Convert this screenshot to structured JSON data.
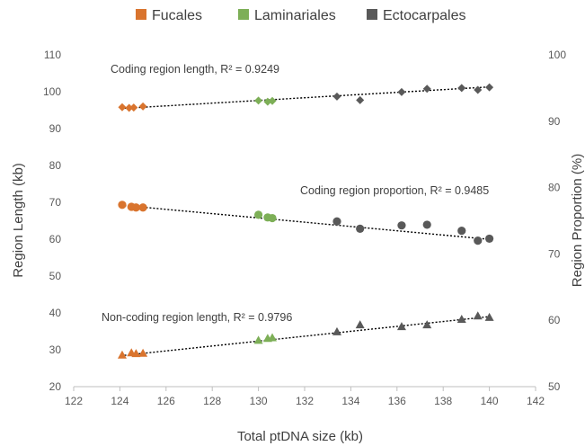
{
  "chart_data": {
    "type": "scatter",
    "xlabel": "Total ptDNA size (kb)",
    "ylabel": "Region Length (kb)",
    "y2label": "Region Proportion (%)",
    "xlim": [
      122,
      142
    ],
    "ylim": [
      20,
      110
    ],
    "y2lim": [
      50,
      100
    ],
    "xticks": [
      "122",
      "124",
      "126",
      "128",
      "130",
      "132",
      "134",
      "136",
      "138",
      "140",
      "142"
    ],
    "yticks": [
      "20",
      "30",
      "40",
      "50",
      "60",
      "70",
      "80",
      "90",
      "100",
      "110"
    ],
    "y2ticks": [
      "50",
      "60",
      "70",
      "80",
      "90",
      "100"
    ],
    "legend_position": "top",
    "legend": [
      {
        "label": "Fucales",
        "color": "#D9742E"
      },
      {
        "label": "Laminariales",
        "color": "#7DAF57"
      },
      {
        "label": "Ectocarpales",
        "color": "#595959"
      }
    ],
    "series": [
      {
        "key": "coding_length",
        "axis": "left",
        "marker": "diamond",
        "annotation": "Coding region length, R² = 0.9249",
        "trend_x": [
          124.2,
          140
        ],
        "trend_y": [
          95.5,
          101.3
        ],
        "points": [
          {
            "x": 124.1,
            "y": 95.8,
            "group": "Fucales"
          },
          {
            "x": 124.4,
            "y": 95.6,
            "group": "Fucales"
          },
          {
            "x": 124.6,
            "y": 95.7,
            "group": "Fucales"
          },
          {
            "x": 125.0,
            "y": 96.0,
            "group": "Fucales"
          },
          {
            "x": 130.0,
            "y": 97.6,
            "group": "Laminariales"
          },
          {
            "x": 130.4,
            "y": 97.3,
            "group": "Laminariales"
          },
          {
            "x": 130.6,
            "y": 97.5,
            "group": "Laminariales"
          },
          {
            "x": 133.4,
            "y": 98.7,
            "group": "Ectocarpales"
          },
          {
            "x": 134.4,
            "y": 97.7,
            "group": "Ectocarpales"
          },
          {
            "x": 136.2,
            "y": 99.9,
            "group": "Ectocarpales"
          },
          {
            "x": 137.3,
            "y": 100.8,
            "group": "Ectocarpales"
          },
          {
            "x": 138.8,
            "y": 101.0,
            "group": "Ectocarpales"
          },
          {
            "x": 139.5,
            "y": 100.5,
            "group": "Ectocarpales"
          },
          {
            "x": 140.0,
            "y": 101.2,
            "group": "Ectocarpales"
          }
        ]
      },
      {
        "key": "coding_proportion",
        "axis": "right",
        "marker": "circle",
        "annotation": "Coding region proportion, R² = 0.9485",
        "trend_x": [
          124.2,
          140
        ],
        "trend_y": [
          77.3,
          72.2
        ],
        "points": [
          {
            "x": 124.1,
            "y": 77.4,
            "group": "Fucales"
          },
          {
            "x": 124.5,
            "y": 77.1,
            "group": "Fucales"
          },
          {
            "x": 124.7,
            "y": 77.0,
            "group": "Fucales"
          },
          {
            "x": 125.0,
            "y": 77.0,
            "group": "Fucales"
          },
          {
            "x": 130.0,
            "y": 75.9,
            "group": "Laminariales"
          },
          {
            "x": 130.4,
            "y": 75.5,
            "group": "Laminariales"
          },
          {
            "x": 130.6,
            "y": 75.4,
            "group": "Laminariales"
          },
          {
            "x": 133.4,
            "y": 74.9,
            "group": "Ectocarpales"
          },
          {
            "x": 134.4,
            "y": 73.8,
            "group": "Ectocarpales"
          },
          {
            "x": 136.2,
            "y": 74.3,
            "group": "Ectocarpales"
          },
          {
            "x": 137.3,
            "y": 74.4,
            "group": "Ectocarpales"
          },
          {
            "x": 138.8,
            "y": 73.5,
            "group": "Ectocarpales"
          },
          {
            "x": 139.5,
            "y": 72.0,
            "group": "Ectocarpales"
          },
          {
            "x": 140.0,
            "y": 72.3,
            "group": "Ectocarpales"
          }
        ]
      },
      {
        "key": "noncoding_length",
        "axis": "left",
        "marker": "triangle",
        "annotation": "Non-coding region length, R² = 0.9796",
        "trend_x": [
          124.2,
          140
        ],
        "trend_y": [
          28.5,
          39.0
        ],
        "points": [
          {
            "x": 124.1,
            "y": 28.5,
            "group": "Fucales"
          },
          {
            "x": 124.5,
            "y": 29.1,
            "group": "Fucales"
          },
          {
            "x": 124.7,
            "y": 28.9,
            "group": "Fucales"
          },
          {
            "x": 125.0,
            "y": 29.0,
            "group": "Fucales"
          },
          {
            "x": 130.0,
            "y": 32.5,
            "group": "Laminariales"
          },
          {
            "x": 130.4,
            "y": 33.0,
            "group": "Laminariales"
          },
          {
            "x": 130.6,
            "y": 33.2,
            "group": "Laminariales"
          },
          {
            "x": 133.4,
            "y": 34.8,
            "group": "Ectocarpales"
          },
          {
            "x": 134.4,
            "y": 36.7,
            "group": "Ectocarpales"
          },
          {
            "x": 136.2,
            "y": 36.2,
            "group": "Ectocarpales"
          },
          {
            "x": 137.3,
            "y": 36.7,
            "group": "Ectocarpales"
          },
          {
            "x": 138.8,
            "y": 38.2,
            "group": "Ectocarpales"
          },
          {
            "x": 139.5,
            "y": 39.1,
            "group": "Ectocarpales"
          },
          {
            "x": 140.0,
            "y": 38.7,
            "group": "Ectocarpales"
          }
        ]
      }
    ]
  }
}
